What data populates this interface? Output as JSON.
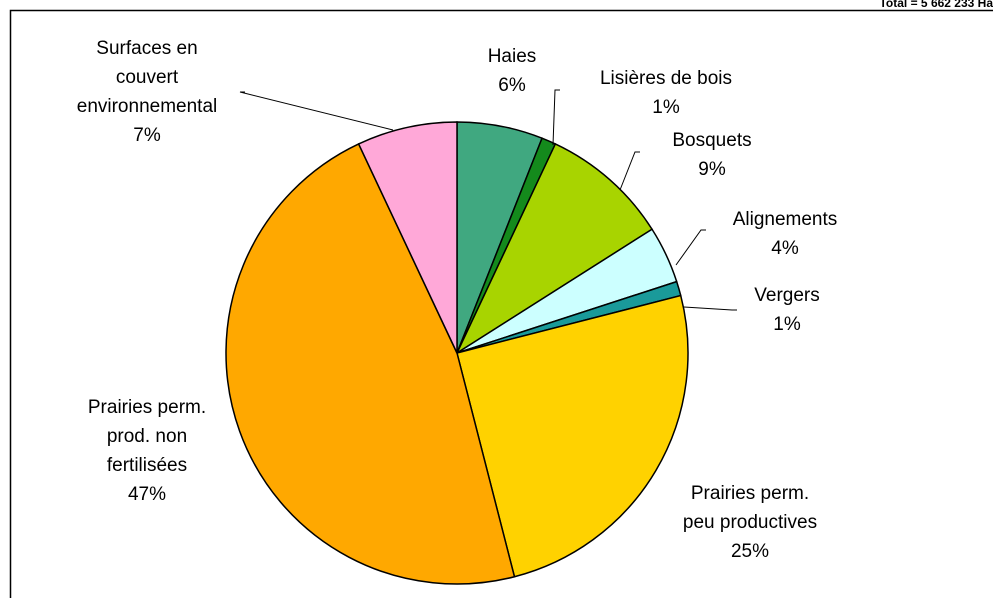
{
  "chart_data": {
    "type": "pie",
    "subtitle": "Total = 5 662 233 Ha",
    "categories": [
      "Haies",
      "Lisières de bois",
      "Bosquets",
      "Alignements",
      "Vergers",
      "Prairies perm.\npeu productives",
      "Prairies perm.\nprod. non\nfertilisées",
      "Surfaces en\ncouvert\nenvironnemental"
    ],
    "values": [
      6,
      1,
      9,
      4,
      1,
      25,
      47,
      7
    ],
    "value_labels": [
      "6%",
      "1%",
      "9%",
      "4%",
      "1%",
      "25%",
      "47%",
      "7%"
    ],
    "colors": [
      "#40a880",
      "#148a1c",
      "#a8d400",
      "#ccffff",
      "#1a9a9a",
      "#ffd200",
      "#ffa800",
      "#ffa8d8"
    ]
  }
}
